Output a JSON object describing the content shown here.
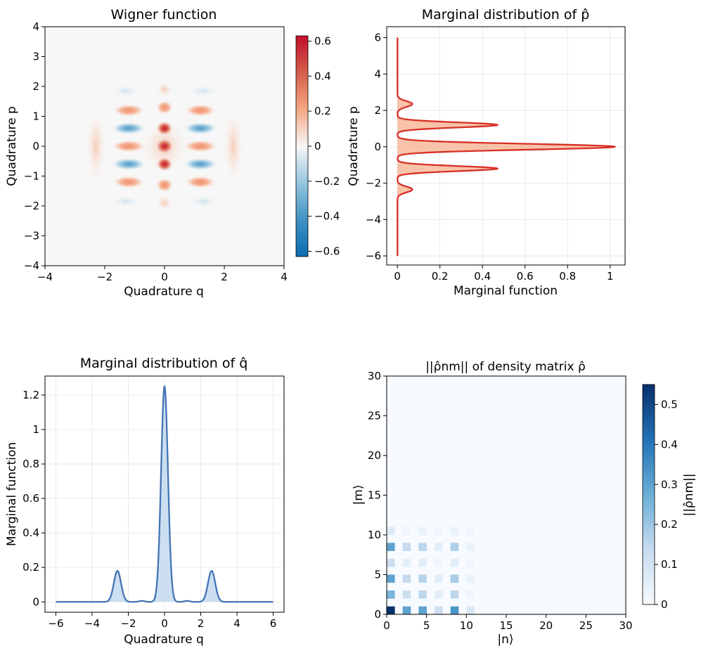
{
  "chart_data": [
    {
      "id": "wigner",
      "type": "heatmap",
      "title": "Wigner function",
      "xlabel": "Quadrature q",
      "ylabel": "Quadrature p",
      "xlim": [
        -4,
        4
      ],
      "ylim": [
        -4,
        4
      ],
      "xticks": [
        -4,
        -2,
        0,
        2,
        4
      ],
      "yticks": [
        -4,
        -3,
        -2,
        -1,
        0,
        1,
        2,
        3,
        4
      ],
      "colormap": "RdBu_r",
      "colorbar": {
        "range": [
          -0.63,
          0.63
        ],
        "ticks": [
          -0.6,
          -0.4,
          -0.2,
          0.0,
          0.2,
          0.4,
          0.6
        ]
      },
      "peak_value": 0.62,
      "min_value": -0.42
    },
    {
      "id": "marginal_p",
      "type": "area",
      "title": "Marginal distribution of p̂",
      "xlabel": "Marginal function",
      "ylabel": "Quadrature p",
      "xlim": [
        -0.05,
        1.07
      ],
      "ylim": [
        -6.5,
        6.6
      ],
      "xticks": [
        0.0,
        0.2,
        0.4,
        0.6,
        0.8,
        1.0
      ],
      "yticks": [
        -6,
        -4,
        -2,
        0,
        2,
        4,
        6
      ],
      "line_color": "#d73027",
      "fill_color": "#f8b89a",
      "grid": true,
      "peaks": [
        {
          "p": 0.0,
          "value": 1.02
        },
        {
          "p": 1.2,
          "value": 0.47
        },
        {
          "p": -1.2,
          "value": 0.47
        },
        {
          "p": 2.35,
          "value": 0.07
        },
        {
          "p": -2.35,
          "value": 0.07
        }
      ],
      "p_range": [
        -6,
        6
      ]
    },
    {
      "id": "marginal_q",
      "type": "area",
      "title": "Marginal distribution of q̂",
      "xlabel": "Quadrature q",
      "ylabel": "Marginal function",
      "xlim": [
        -6.6,
        6.6
      ],
      "ylim": [
        -0.06,
        1.31
      ],
      "xticks": [
        -6,
        -4,
        -2,
        0,
        2,
        4,
        6
      ],
      "yticks": [
        0.0,
        0.2,
        0.4,
        0.6,
        0.8,
        1.0,
        1.2
      ],
      "line_color": "#4575b4",
      "fill_color": "#c6dbef",
      "grid": true,
      "peaks": [
        {
          "q": 0.0,
          "value": 1.25
        },
        {
          "q": 2.6,
          "value": 0.18
        },
        {
          "q": -2.6,
          "value": 0.18
        }
      ],
      "q_range": [
        -6,
        6
      ]
    },
    {
      "id": "density",
      "type": "heatmap",
      "title": "||ρ̂nm|| of density matrix ρ̂",
      "xlabel": "|n⟩",
      "ylabel": "|m⟩",
      "xlim": [
        0,
        30
      ],
      "ylim": [
        0,
        30
      ],
      "xticks": [
        0,
        5,
        10,
        15,
        20,
        25,
        30
      ],
      "yticks": [
        0,
        5,
        10,
        15,
        20,
        25,
        30
      ],
      "colormap": "Blues",
      "colorbar": {
        "range": [
          0,
          0.55
        ],
        "ticks": [
          0.0,
          0.1,
          0.2,
          0.3,
          0.4,
          0.5
        ],
        "label": "||ρ̂nm||"
      },
      "cells": [
        {
          "n": 0,
          "m": 0,
          "value": 0.55
        },
        {
          "n": 0,
          "m": 2,
          "value": 0.25
        },
        {
          "n": 0,
          "m": 4,
          "value": 0.3
        },
        {
          "n": 0,
          "m": 6,
          "value": 0.12
        },
        {
          "n": 0,
          "m": 8,
          "value": 0.3
        },
        {
          "n": 0,
          "m": 10,
          "value": 0.07
        },
        {
          "n": 2,
          "m": 0,
          "value": 0.3
        },
        {
          "n": 2,
          "m": 2,
          "value": 0.12
        },
        {
          "n": 2,
          "m": 4,
          "value": 0.14
        },
        {
          "n": 2,
          "m": 6,
          "value": 0.05
        },
        {
          "n": 2,
          "m": 8,
          "value": 0.14
        },
        {
          "n": 2,
          "m": 10,
          "value": 0.03
        },
        {
          "n": 4,
          "m": 0,
          "value": 0.3
        },
        {
          "n": 4,
          "m": 2,
          "value": 0.15
        },
        {
          "n": 4,
          "m": 4,
          "value": 0.16
        },
        {
          "n": 4,
          "m": 6,
          "value": 0.06
        },
        {
          "n": 4,
          "m": 8,
          "value": 0.15
        },
        {
          "n": 4,
          "m": 10,
          "value": 0.04
        },
        {
          "n": 6,
          "m": 0,
          "value": 0.12
        },
        {
          "n": 6,
          "m": 2,
          "value": 0.05
        },
        {
          "n": 6,
          "m": 4,
          "value": 0.06
        },
        {
          "n": 6,
          "m": 6,
          "value": 0.03
        },
        {
          "n": 6,
          "m": 8,
          "value": 0.06
        },
        {
          "n": 6,
          "m": 10,
          "value": 0.02
        },
        {
          "n": 8,
          "m": 0,
          "value": 0.33
        },
        {
          "n": 8,
          "m": 2,
          "value": 0.15
        },
        {
          "n": 8,
          "m": 4,
          "value": 0.18
        },
        {
          "n": 8,
          "m": 6,
          "value": 0.06
        },
        {
          "n": 8,
          "m": 8,
          "value": 0.17
        },
        {
          "n": 8,
          "m": 10,
          "value": 0.04
        },
        {
          "n": 10,
          "m": 0,
          "value": 0.08
        },
        {
          "n": 10,
          "m": 2,
          "value": 0.03
        },
        {
          "n": 10,
          "m": 4,
          "value": 0.04
        },
        {
          "n": 10,
          "m": 6,
          "value": 0.02
        },
        {
          "n": 10,
          "m": 8,
          "value": 0.04
        },
        {
          "n": 10,
          "m": 10,
          "value": 0.02
        }
      ]
    }
  ]
}
